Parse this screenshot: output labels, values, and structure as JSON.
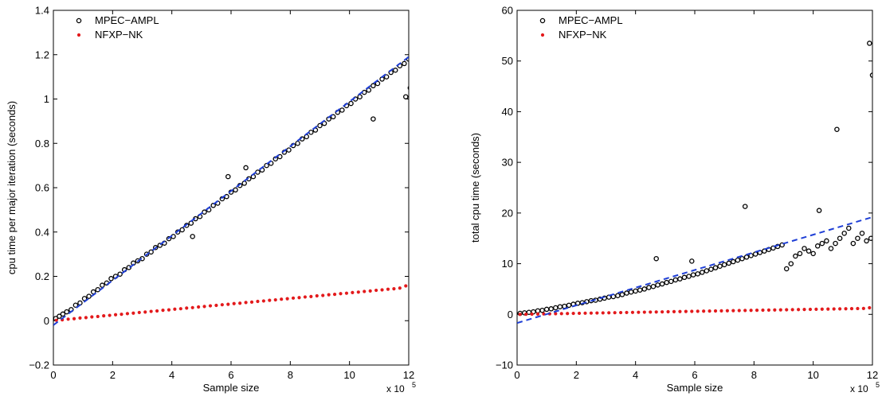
{
  "chart_data": [
    {
      "type": "scatter",
      "xlabel": "Sample size",
      "ylabel": "cpu time per major iteration (seconds)",
      "x_multiplier": "x 10",
      "x_multiplier_exp": "5",
      "xlim": [
        0,
        12
      ],
      "ylim": [
        -0.2,
        1.4
      ],
      "xticks": [
        0,
        2,
        4,
        6,
        8,
        10,
        12
      ],
      "yticks": [
        -0.2,
        0,
        0.2,
        0.4,
        0.6,
        0.8,
        1,
        1.2,
        1.4
      ],
      "ytick_labels": [
        "−0.2",
        "0",
        "0.2",
        "0.4",
        "0.6",
        "0.8",
        "1",
        "1.2",
        "1.4"
      ],
      "legend": {
        "position": "top-left",
        "entries": [
          "MPEC−AMPL",
          "NFXP−NK"
        ]
      },
      "series": [
        {
          "name": "MPEC−AMPL",
          "marker": "open-circle",
          "color": "#000000",
          "x": [
            0.08,
            0.2,
            0.32,
            0.45,
            0.6,
            0.75,
            0.9,
            1.05,
            1.2,
            1.35,
            1.5,
            1.65,
            1.8,
            1.95,
            2.1,
            2.25,
            2.4,
            2.55,
            2.7,
            2.85,
            3.0,
            3.15,
            3.3,
            3.45,
            3.6,
            3.75,
            3.9,
            4.05,
            4.2,
            4.35,
            4.5,
            4.65,
            4.8,
            4.95,
            5.1,
            5.25,
            5.4,
            5.55,
            5.7,
            5.85,
            6.0,
            6.15,
            6.3,
            6.45,
            6.6,
            6.75,
            6.9,
            7.05,
            7.2,
            7.35,
            7.5,
            7.65,
            7.8,
            7.95,
            8.1,
            8.25,
            8.4,
            8.55,
            8.7,
            8.85,
            9.0,
            9.15,
            9.3,
            9.45,
            9.6,
            9.75,
            9.9,
            10.05,
            10.2,
            10.35,
            10.5,
            10.65,
            10.8,
            10.95,
            11.1,
            11.25,
            11.4,
            11.55,
            11.7,
            11.85,
            12.0,
            5.9,
            4.7,
            6.5,
            10.8,
            11.9,
            12.05
          ],
          "y": [
            0.01,
            0.02,
            0.03,
            0.04,
            0.05,
            0.07,
            0.08,
            0.1,
            0.11,
            0.13,
            0.14,
            0.16,
            0.17,
            0.19,
            0.2,
            0.21,
            0.23,
            0.24,
            0.26,
            0.27,
            0.28,
            0.3,
            0.31,
            0.33,
            0.34,
            0.35,
            0.37,
            0.38,
            0.4,
            0.41,
            0.43,
            0.44,
            0.46,
            0.47,
            0.49,
            0.5,
            0.52,
            0.53,
            0.55,
            0.56,
            0.58,
            0.59,
            0.61,
            0.62,
            0.64,
            0.65,
            0.67,
            0.68,
            0.7,
            0.71,
            0.73,
            0.74,
            0.76,
            0.77,
            0.79,
            0.8,
            0.82,
            0.83,
            0.85,
            0.86,
            0.88,
            0.89,
            0.91,
            0.92,
            0.94,
            0.95,
            0.97,
            0.98,
            1.0,
            1.01,
            1.03,
            1.04,
            1.06,
            1.07,
            1.09,
            1.1,
            1.12,
            1.13,
            1.15,
            1.16,
            1.18,
            0.65,
            0.38,
            0.69,
            0.91,
            1.01,
            1.05
          ]
        },
        {
          "name": "NFXP−NK",
          "marker": "filled-dot",
          "color": "#e31a1c",
          "x": [
            0.1,
            0.3,
            0.5,
            0.7,
            0.9,
            1.1,
            1.3,
            1.5,
            1.7,
            1.9,
            2.1,
            2.3,
            2.5,
            2.7,
            2.9,
            3.1,
            3.3,
            3.5,
            3.7,
            3.9,
            4.1,
            4.3,
            4.5,
            4.7,
            4.9,
            5.1,
            5.3,
            5.5,
            5.7,
            5.9,
            6.1,
            6.3,
            6.5,
            6.7,
            6.9,
            7.1,
            7.3,
            7.5,
            7.7,
            7.9,
            8.1,
            8.3,
            8.5,
            8.7,
            8.9,
            9.1,
            9.3,
            9.5,
            9.7,
            9.9,
            10.1,
            10.3,
            10.5,
            10.7,
            10.9,
            11.1,
            11.3,
            11.5,
            11.7,
            11.9
          ],
          "y": [
            0.002,
            0.004,
            0.007,
            0.009,
            0.012,
            0.014,
            0.017,
            0.019,
            0.022,
            0.024,
            0.027,
            0.029,
            0.032,
            0.034,
            0.037,
            0.039,
            0.042,
            0.044,
            0.047,
            0.049,
            0.052,
            0.054,
            0.057,
            0.059,
            0.062,
            0.064,
            0.067,
            0.069,
            0.072,
            0.074,
            0.077,
            0.079,
            0.082,
            0.084,
            0.087,
            0.089,
            0.092,
            0.094,
            0.097,
            0.099,
            0.102,
            0.104,
            0.107,
            0.109,
            0.112,
            0.114,
            0.117,
            0.119,
            0.122,
            0.124,
            0.127,
            0.129,
            0.132,
            0.134,
            0.137,
            0.139,
            0.142,
            0.144,
            0.147,
            0.157
          ]
        }
      ],
      "fit_line": {
        "color": "#1f3fd6",
        "style": "dashed",
        "x": [
          0,
          12
        ],
        "y": [
          -0.02,
          1.19
        ]
      }
    },
    {
      "type": "scatter",
      "xlabel": "Sample size",
      "ylabel": "total cpu time (seconds)",
      "x_multiplier": "x 10",
      "x_multiplier_exp": "5",
      "xlim": [
        0,
        12
      ],
      "ylim": [
        -10,
        60
      ],
      "xticks": [
        0,
        2,
        4,
        6,
        8,
        10,
        12
      ],
      "yticks": [
        -10,
        0,
        10,
        20,
        30,
        40,
        50,
        60
      ],
      "ytick_labels": [
        "−10",
        "0",
        "10",
        "20",
        "30",
        "40",
        "50",
        "60"
      ],
      "legend": {
        "position": "top-left",
        "entries": [
          "MPEC−AMPL",
          "NFXP−NK"
        ]
      },
      "series": [
        {
          "name": "MPEC−AMPL",
          "marker": "open-circle",
          "color": "#000000",
          "x": [
            0.1,
            0.25,
            0.4,
            0.55,
            0.7,
            0.85,
            1.0,
            1.15,
            1.3,
            1.45,
            1.6,
            1.75,
            1.9,
            2.05,
            2.2,
            2.35,
            2.5,
            2.65,
            2.8,
            2.95,
            3.1,
            3.25,
            3.4,
            3.55,
            3.7,
            3.85,
            4.0,
            4.15,
            4.3,
            4.45,
            4.6,
            4.75,
            4.9,
            5.05,
            5.2,
            5.35,
            5.5,
            5.65,
            5.8,
            5.95,
            6.1,
            6.25,
            6.4,
            6.55,
            6.7,
            6.85,
            7.0,
            7.15,
            7.3,
            7.45,
            7.6,
            7.75,
            7.9,
            8.05,
            8.2,
            8.35,
            8.5,
            8.65,
            8.8,
            8.95,
            9.1,
            9.25,
            9.4,
            9.55,
            9.7,
            9.85,
            10.0,
            10.15,
            10.3,
            10.45,
            10.6,
            10.75,
            10.9,
            11.05,
            11.2,
            11.35,
            11.5,
            11.65,
            11.8,
            11.95,
            4.7,
            5.9,
            7.7,
            10.2,
            10.8,
            11.9,
            12.0
          ],
          "y": [
            0.2,
            0.3,
            0.4,
            0.5,
            0.7,
            0.8,
            1.0,
            1.1,
            1.3,
            1.5,
            1.6,
            1.8,
            2.0,
            2.2,
            2.3,
            2.5,
            2.7,
            2.8,
            3.0,
            3.2,
            3.4,
            3.5,
            3.7,
            3.9,
            4.2,
            4.4,
            4.6,
            4.8,
            5.0,
            5.3,
            5.5,
            5.8,
            6.0,
            6.3,
            6.5,
            6.8,
            7.0,
            7.3,
            7.5,
            7.8,
            8.0,
            8.3,
            8.6,
            8.9,
            9.2,
            9.5,
            9.8,
            10.1,
            10.4,
            10.7,
            11.0,
            11.3,
            11.6,
            11.9,
            12.2,
            12.5,
            12.8,
            13.1,
            13.4,
            13.7,
            9.0,
            10.0,
            11.5,
            12.0,
            13.0,
            12.5,
            12.0,
            13.5,
            14.0,
            14.5,
            13.0,
            14.0,
            15.0,
            16.0,
            17.0,
            14.0,
            15.0,
            16.0,
            14.5,
            15.0,
            11.0,
            10.5,
            21.3,
            20.5,
            36.5,
            53.5,
            47.2
          ]
        },
        {
          "name": "NFXP−NK",
          "marker": "filled-dot",
          "color": "#e31a1c",
          "x": [
            0.1,
            0.3,
            0.5,
            0.7,
            0.9,
            1.1,
            1.3,
            1.5,
            1.7,
            1.9,
            2.1,
            2.3,
            2.5,
            2.7,
            2.9,
            3.1,
            3.3,
            3.5,
            3.7,
            3.9,
            4.1,
            4.3,
            4.5,
            4.7,
            4.9,
            5.1,
            5.3,
            5.5,
            5.7,
            5.9,
            6.1,
            6.3,
            6.5,
            6.7,
            6.9,
            7.1,
            7.3,
            7.5,
            7.7,
            7.9,
            8.1,
            8.3,
            8.5,
            8.7,
            8.9,
            9.1,
            9.3,
            9.5,
            9.7,
            9.9,
            10.1,
            10.3,
            10.5,
            10.7,
            10.9,
            11.1,
            11.3,
            11.5,
            11.7,
            11.9
          ],
          "y": [
            0.01,
            0.03,
            0.05,
            0.07,
            0.09,
            0.11,
            0.13,
            0.15,
            0.17,
            0.19,
            0.21,
            0.23,
            0.25,
            0.27,
            0.29,
            0.31,
            0.33,
            0.35,
            0.37,
            0.39,
            0.41,
            0.43,
            0.45,
            0.47,
            0.49,
            0.51,
            0.53,
            0.55,
            0.57,
            0.59,
            0.61,
            0.63,
            0.65,
            0.67,
            0.69,
            0.71,
            0.73,
            0.75,
            0.77,
            0.79,
            0.81,
            0.83,
            0.85,
            0.87,
            0.89,
            0.91,
            0.93,
            0.95,
            0.97,
            0.99,
            1.01,
            1.03,
            1.05,
            1.07,
            1.09,
            1.11,
            1.13,
            1.15,
            1.17,
            1.3
          ]
        }
      ],
      "fit_line": {
        "color": "#1f3fd6",
        "style": "dashed",
        "x": [
          0,
          12
        ],
        "y": [
          -1.7,
          19.2
        ]
      }
    }
  ]
}
